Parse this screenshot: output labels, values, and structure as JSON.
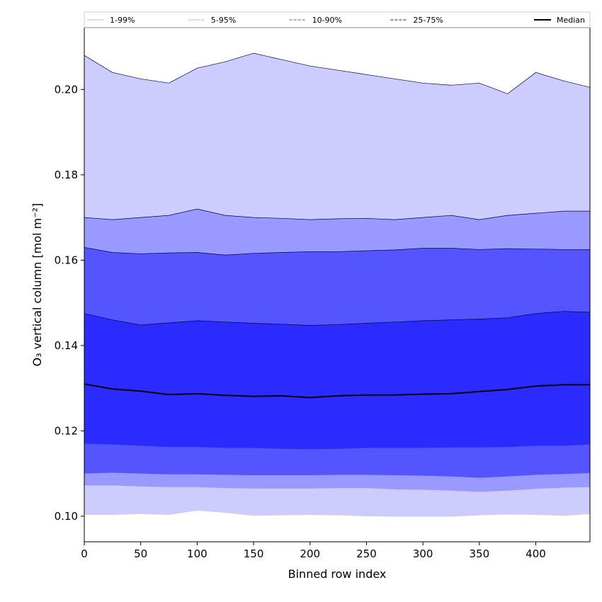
{
  "chart_data": {
    "type": "area",
    "xlabel": "Binned row index",
    "ylabel": "O₃ vertical column [mol m⁻²]",
    "xlim": [
      0,
      448
    ],
    "ylim": [
      0.094,
      0.2145
    ],
    "xticks": [
      0,
      50,
      100,
      150,
      200,
      250,
      300,
      350,
      400
    ],
    "yticks": [
      0.1,
      0.12,
      0.14,
      0.16,
      0.18,
      0.2
    ],
    "ytick_labels": [
      "0.10",
      "0.12",
      "0.14",
      "0.16",
      "0.18",
      "0.20"
    ],
    "legend_position": "top, spanning width",
    "legend": [
      {
        "label": "1-99%",
        "color": "#cccccc",
        "style": "solid"
      },
      {
        "label": "5-95%",
        "color": "#9999dd",
        "style": "dotted"
      },
      {
        "label": "10-90%",
        "color": "#7777ee",
        "style": "dashed"
      },
      {
        "label": "25-75%",
        "color": "#4444ee",
        "style": "dashed"
      },
      {
        "label": "Median",
        "color": "#000000",
        "style": "solid"
      }
    ],
    "x": [
      0,
      25,
      50,
      75,
      100,
      125,
      150,
      175,
      200,
      225,
      250,
      275,
      300,
      325,
      350,
      375,
      400,
      425,
      448
    ],
    "bands": [
      {
        "name": "1-99%",
        "color": "#ccccff",
        "lower": [
          0.1003,
          0.1003,
          0.1005,
          0.1003,
          0.1013,
          0.1008,
          0.1001,
          0.1002,
          0.1003,
          0.1002,
          0.1,
          0.0999,
          0.0999,
          0.0999,
          0.1002,
          0.1004,
          0.1003,
          0.1001,
          0.1005
        ],
        "upper": [
          0.208,
          0.204,
          0.2025,
          0.2015,
          0.205,
          0.2065,
          0.2085,
          0.207,
          0.2055,
          0.2045,
          0.2035,
          0.2025,
          0.2015,
          0.201,
          0.2015,
          0.199,
          0.204,
          0.202,
          0.2005
        ]
      },
      {
        "name": "5-95%",
        "color": "#9999ff",
        "lower": [
          0.1072,
          0.1072,
          0.107,
          0.1068,
          0.1068,
          0.1066,
          0.1065,
          0.1065,
          0.1065,
          0.1066,
          0.1066,
          0.1063,
          0.1062,
          0.106,
          0.1057,
          0.106,
          0.1064,
          0.1067,
          0.1068
        ],
        "upper": [
          0.17,
          0.1695,
          0.17,
          0.1705,
          0.172,
          0.1705,
          0.17,
          0.1698,
          0.1695,
          0.1697,
          0.1698,
          0.1695,
          0.17,
          0.1705,
          0.1695,
          0.1705,
          0.171,
          0.1715,
          0.1715
        ]
      },
      {
        "name": "10-90%",
        "color": "#5555ff",
        "lower": [
          0.11,
          0.1102,
          0.11,
          0.1098,
          0.1098,
          0.1097,
          0.1096,
          0.1096,
          0.1096,
          0.1097,
          0.1097,
          0.1096,
          0.1095,
          0.1093,
          0.109,
          0.1093,
          0.1097,
          0.1099,
          0.1101
        ],
        "upper": [
          0.163,
          0.1618,
          0.1615,
          0.1617,
          0.1618,
          0.1612,
          0.1616,
          0.1618,
          0.162,
          0.162,
          0.1622,
          0.1624,
          0.1628,
          0.1628,
          0.1625,
          0.1627,
          0.1626,
          0.1625,
          0.1625
        ]
      },
      {
        "name": "25-75%",
        "color": "#2b2bff",
        "lower": [
          0.117,
          0.1168,
          0.1165,
          0.1162,
          0.1162,
          0.116,
          0.116,
          0.1158,
          0.1157,
          0.1158,
          0.116,
          0.116,
          0.116,
          0.1161,
          0.1161,
          0.1162,
          0.1165,
          0.1165,
          0.1168
        ],
        "upper": [
          0.1475,
          0.146,
          0.1448,
          0.1453,
          0.1458,
          0.1455,
          0.1452,
          0.145,
          0.1447,
          0.1449,
          0.1452,
          0.1455,
          0.1458,
          0.146,
          0.1462,
          0.1465,
          0.1475,
          0.148,
          0.1478
        ]
      }
    ],
    "median": {
      "name": "Median",
      "color": "#000000",
      "values": [
        0.131,
        0.1298,
        0.1293,
        0.1285,
        0.1287,
        0.1283,
        0.1281,
        0.1282,
        0.1278,
        0.1282,
        0.1284,
        0.1284,
        0.1286,
        0.1287,
        0.1292,
        0.1297,
        0.1305,
        0.1308,
        0.1308
      ]
    }
  }
}
